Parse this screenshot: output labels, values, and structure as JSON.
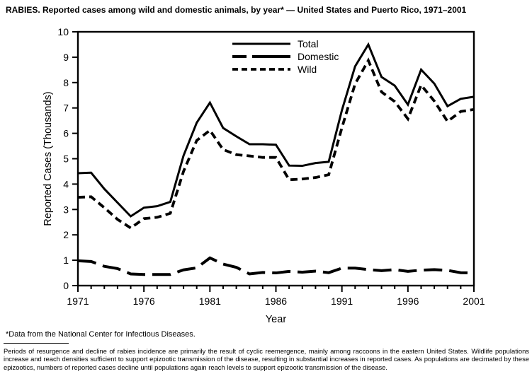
{
  "title": "RABIES. Reported cases among wild and domestic animals, by year* — United States and Puerto Rico, 1971–2001",
  "footnote": "*Data from the National Center for Infectious Diseases.",
  "note_paragraph": "Periods of resurgence and decline of rabies incidence are primarily the result of cyclic reemergence, mainly among raccoons in the eastern United States. Wildlife populations increase and reach densities sufficient to support epizootic transmission of the disease, resulting in substantial increases in reported cases. As populations are decimated by these epizootics, numbers of reported cases decline until populations again reach levels to support epizootic transmission of the disease.",
  "chart_data": {
    "type": "line",
    "title": "RABIES. Reported cases among wild and domestic animals, by year — United States and Puerto Rico, 1971–2001",
    "xlabel": "Year",
    "ylabel": "Reported Cases (Thousands)",
    "xlim": [
      1971,
      2001
    ],
    "ylim": [
      0,
      10
    ],
    "x_major_ticks": [
      1971,
      1976,
      1981,
      1986,
      1991,
      1996,
      2001
    ],
    "y_ticks": [
      0,
      1,
      2,
      3,
      4,
      5,
      6,
      7,
      8,
      9,
      10
    ],
    "grid": false,
    "legend_position": "top-center-inside",
    "line_color": "#000000",
    "background_color": "#ffffff",
    "x": [
      1971,
      1972,
      1973,
      1974,
      1975,
      1976,
      1977,
      1978,
      1979,
      1980,
      1981,
      1982,
      1983,
      1984,
      1985,
      1986,
      1987,
      1988,
      1989,
      1990,
      1991,
      1992,
      1993,
      1994,
      1995,
      1996,
      1997,
      1998,
      1999,
      2000,
      2001
    ],
    "series": [
      {
        "name": "Total",
        "style": "solid",
        "values": [
          4.43,
          4.45,
          3.81,
          3.27,
          2.73,
          3.07,
          3.13,
          3.3,
          5.12,
          6.42,
          7.21,
          6.21,
          5.88,
          5.57,
          5.57,
          5.55,
          4.73,
          4.72,
          4.83,
          4.88,
          6.91,
          8.64,
          9.5,
          8.22,
          7.88,
          7.13,
          8.51,
          7.96,
          7.07,
          7.36,
          7.44
        ]
      },
      {
        "name": "Domestic",
        "style": "long-dash",
        "values": [
          0.98,
          0.95,
          0.76,
          0.67,
          0.46,
          0.44,
          0.44,
          0.44,
          0.62,
          0.7,
          1.09,
          0.85,
          0.72,
          0.46,
          0.52,
          0.5,
          0.56,
          0.53,
          0.57,
          0.51,
          0.69,
          0.69,
          0.63,
          0.59,
          0.63,
          0.56,
          0.61,
          0.63,
          0.6,
          0.51,
          0.5
        ]
      },
      {
        "name": "Wild",
        "style": "short-dash",
        "values": [
          3.48,
          3.5,
          3.07,
          2.61,
          2.27,
          2.64,
          2.69,
          2.85,
          4.5,
          5.72,
          6.12,
          5.36,
          5.16,
          5.11,
          5.05,
          5.05,
          4.17,
          4.2,
          4.26,
          4.37,
          6.22,
          7.95,
          8.87,
          7.63,
          7.25,
          6.57,
          7.9,
          7.27,
          6.47,
          6.86,
          6.94
        ]
      }
    ]
  }
}
